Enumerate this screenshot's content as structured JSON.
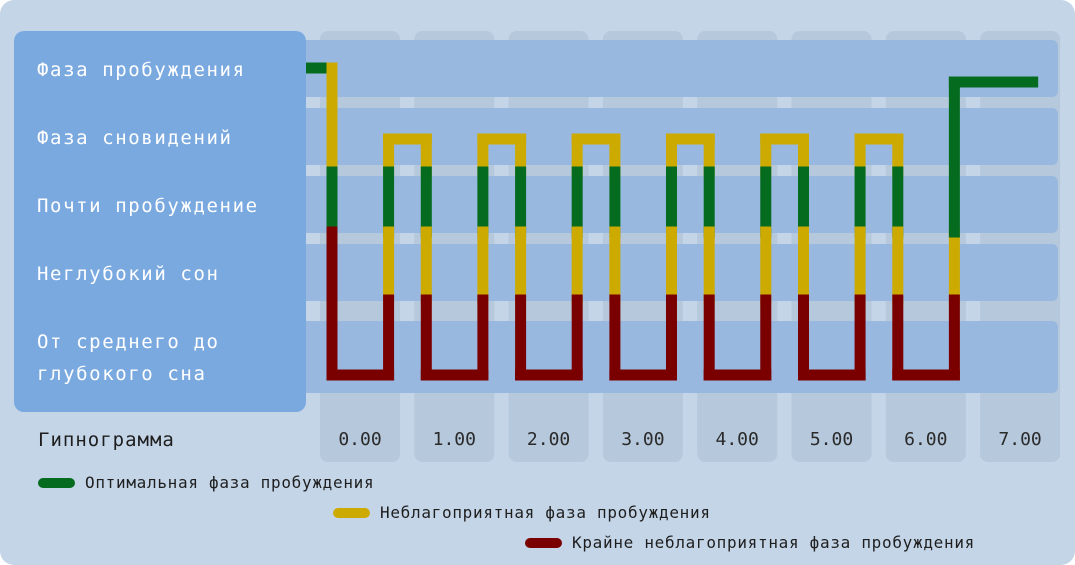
{
  "chart_data": {
    "type": "line",
    "title": "Гипнограмма",
    "levels": [
      "Фаза пробуждения",
      "Фаза сновидений",
      "Почти пробуждение",
      "Неглубокий сон",
      "От среднего до глубокого сна"
    ],
    "x_ticks": [
      "0.00",
      "1.00",
      "2.00",
      "3.00",
      "4.00",
      "5.00",
      "6.00",
      "7.00"
    ],
    "xlim": [
      0,
      7
    ],
    "cycles": [
      {
        "down_x": 0.0,
        "deep_start": 0.0,
        "deep_end": 0.6,
        "rem_start": 0.6,
        "rem_end": 1.0
      },
      {
        "down_x": 1.0,
        "deep_start": 1.0,
        "deep_end": 1.6,
        "rem_start": 1.6,
        "rem_end": 2.0
      },
      {
        "down_x": 2.0,
        "deep_start": 2.0,
        "deep_end": 2.6,
        "rem_start": 2.6,
        "rem_end": 3.0
      },
      {
        "down_x": 3.0,
        "deep_start": 3.0,
        "deep_end": 3.6,
        "rem_start": 3.6,
        "rem_end": 4.0
      },
      {
        "down_x": 4.0,
        "deep_start": 4.0,
        "deep_end": 4.6,
        "rem_start": 4.6,
        "rem_end": 5.0
      },
      {
        "down_x": 5.0,
        "deep_start": 5.0,
        "deep_end": 5.6,
        "rem_start": 5.6,
        "rem_end": 6.0
      },
      {
        "down_x": 6.0,
        "deep_start": 6.0,
        "deep_end": 6.6
      }
    ],
    "wake_start": 0.0,
    "wake_end": 6.9,
    "final_wake_x": 6.6,
    "legend": [
      {
        "label": "Оптимальная фаза пробуждения",
        "color": "#056b1f"
      },
      {
        "label": "Неблагоприятная фаза пробуждения",
        "color": "#ccaa00"
      },
      {
        "label": "Крайне неблагоприятная фаза пробуждения",
        "color": "#7a0000"
      }
    ]
  }
}
